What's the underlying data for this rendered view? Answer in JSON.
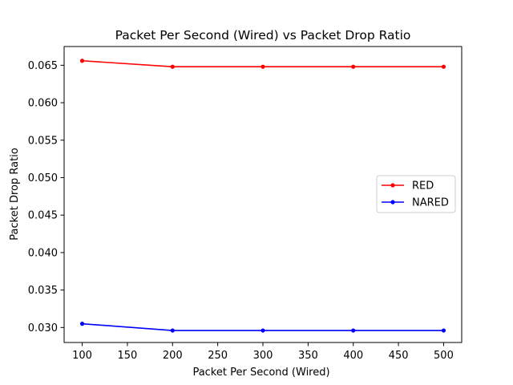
{
  "chart_data": {
    "type": "line",
    "title": "Packet Per Second (Wired)  vs Packet Drop Ratio",
    "xlabel": "Packet Per Second (Wired)",
    "ylabel": "Packet Drop Ratio",
    "x": [
      100,
      200,
      300,
      400,
      500
    ],
    "xlim": [
      80,
      520
    ],
    "ylim": [
      0.028,
      0.0675
    ],
    "xticks": [
      "100",
      "150",
      "200",
      "250",
      "300",
      "350",
      "400",
      "450",
      "500"
    ],
    "yticks": [
      "0.030",
      "0.035",
      "0.040",
      "0.045",
      "0.050",
      "0.055",
      "0.060",
      "0.065"
    ],
    "grid": false,
    "legend_position": "center-right",
    "series": [
      {
        "name": "RED",
        "color": "#ff0000",
        "values": [
          0.0656,
          0.0648,
          0.0648,
          0.0648,
          0.0648
        ]
      },
      {
        "name": "NARED",
        "color": "#0000ff",
        "values": [
          0.0305,
          0.0296,
          0.0296,
          0.0296,
          0.0296
        ]
      }
    ]
  }
}
